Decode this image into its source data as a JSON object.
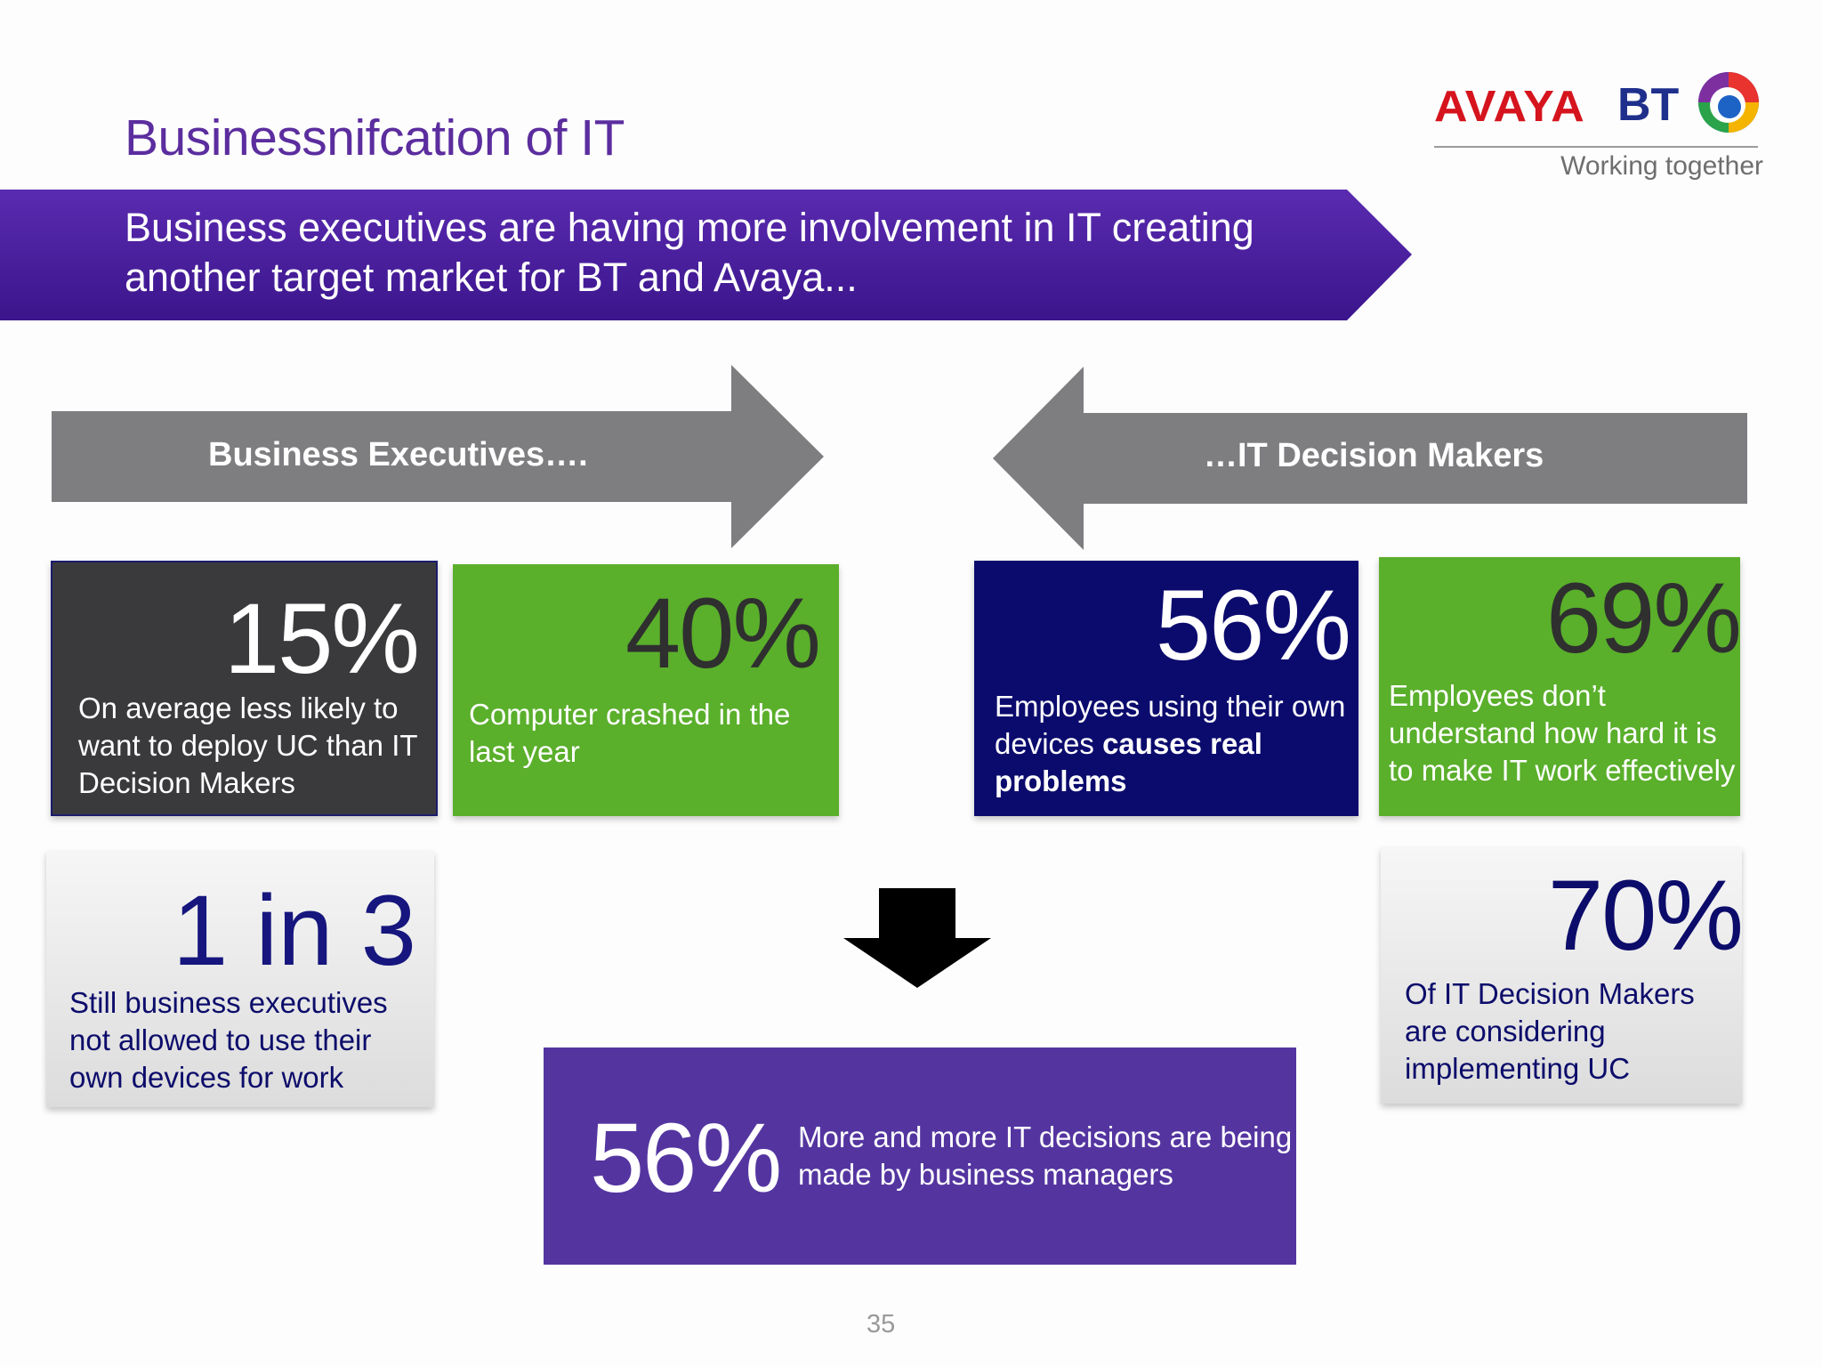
{
  "title": "Businessnifcation of IT",
  "logos": {
    "avaya": "AVAYA",
    "bt": "BT",
    "tagline": "Working together"
  },
  "banner": {
    "text_line1": "Business executives are having more involvement in IT creating",
    "text_line2": "another target market for BT and Avaya..."
  },
  "arrows": {
    "left_label": "Business Executives….",
    "right_label": "…IT Decision Makers"
  },
  "stats": {
    "s15": {
      "value": "15%",
      "text": "On average less likely to want to deploy UC than IT Decision Makers"
    },
    "s40": {
      "value": "40%",
      "text": "Computer crashed in the last year"
    },
    "s56a": {
      "value": "56%",
      "text_plain": "Employees using their own devices ",
      "text_bold": "causes real problems"
    },
    "s69": {
      "value": "69%",
      "line1": "Employees don’t",
      "line2": "understand how hard it is",
      "line3": "to make IT work effectively"
    },
    "s1in3": {
      "value": "1 in 3",
      "text": "Still business executives not allowed to use their own devices for work"
    },
    "s70": {
      "value": "70%",
      "text": "Of IT Decision Makers are considering implementing UC"
    },
    "s56b": {
      "value": "56%",
      "text": "More and more IT decisions are being made by business managers"
    }
  },
  "page_number": "35",
  "colors": {
    "title_purple": "#5b2d9e",
    "banner_purple": "#4a1f9e",
    "arrow_grey": "#7e7d80",
    "green": "#5aaf2b",
    "navy": "#0b0b6e",
    "dark_grey": "#3a3a3d",
    "bottom_purple": "#5435a0",
    "avaya_red": "#d5141d",
    "bt_blue": "#1f2f8c"
  }
}
